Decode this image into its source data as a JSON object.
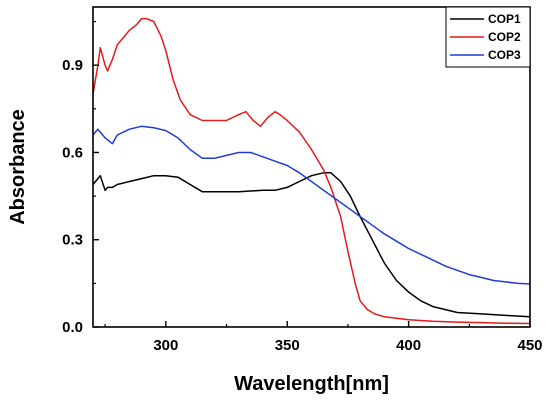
{
  "chart_data": {
    "type": "line",
    "title": "",
    "xlabel": "Wavelength[nm]",
    "ylabel": "Absorbance",
    "xlim": [
      270,
      450
    ],
    "ylim": [
      0.0,
      1.1
    ],
    "x_ticks": [
      300,
      350,
      400,
      450
    ],
    "x_tick_labels": [
      "300",
      "350",
      "400",
      "450"
    ],
    "y_ticks": [
      0.0,
      0.3,
      0.6,
      0.9
    ],
    "y_tick_labels": [
      "0.0",
      "0.3",
      "0.6",
      "0.9"
    ],
    "grid": false,
    "legend_position": "top-right",
    "series": [
      {
        "name": "COP1",
        "color": "#000000",
        "x": [
          270,
          272,
          273,
          275,
          276,
          278,
          280,
          285,
          290,
          295,
          300,
          305,
          310,
          315,
          320,
          330,
          340,
          345,
          350,
          355,
          360,
          365,
          368,
          372,
          376,
          380,
          385,
          390,
          395,
          400,
          405,
          410,
          415,
          420,
          430,
          440,
          450
        ],
        "y": [
          0.49,
          0.51,
          0.52,
          0.47,
          0.48,
          0.48,
          0.49,
          0.5,
          0.51,
          0.52,
          0.52,
          0.515,
          0.49,
          0.465,
          0.465,
          0.465,
          0.47,
          0.47,
          0.48,
          0.5,
          0.52,
          0.53,
          0.53,
          0.5,
          0.45,
          0.38,
          0.3,
          0.22,
          0.16,
          0.12,
          0.09,
          0.07,
          0.06,
          0.05,
          0.045,
          0.04,
          0.035
        ]
      },
      {
        "name": "COP2",
        "color": "#e41a1c",
        "x": [
          270,
          271,
          272,
          273,
          274,
          275,
          276,
          277,
          278,
          280,
          283,
          285,
          288,
          290,
          292,
          295,
          298,
          300,
          303,
          306,
          310,
          315,
          320,
          325,
          330,
          333,
          336,
          339,
          342,
          345,
          347,
          350,
          355,
          360,
          365,
          368,
          372,
          375,
          378,
          380,
          383,
          386,
          390,
          395,
          400,
          410,
          420,
          430,
          440,
          450
        ],
        "y": [
          0.8,
          0.85,
          0.9,
          0.96,
          0.93,
          0.9,
          0.88,
          0.9,
          0.92,
          0.97,
          1.0,
          1.02,
          1.04,
          1.06,
          1.06,
          1.05,
          1.0,
          0.95,
          0.85,
          0.78,
          0.73,
          0.71,
          0.71,
          0.71,
          0.73,
          0.74,
          0.71,
          0.69,
          0.72,
          0.74,
          0.73,
          0.71,
          0.67,
          0.61,
          0.54,
          0.48,
          0.38,
          0.26,
          0.15,
          0.09,
          0.06,
          0.045,
          0.035,
          0.03,
          0.025,
          0.02,
          0.017,
          0.015,
          0.013,
          0.012
        ]
      },
      {
        "name": "COP3",
        "color": "#1f3dd6",
        "x": [
          270,
          272,
          273,
          275,
          278,
          280,
          285,
          290,
          295,
          300,
          305,
          310,
          315,
          320,
          325,
          330,
          335,
          340,
          345,
          350,
          355,
          360,
          365,
          370,
          375,
          380,
          385,
          390,
          395,
          400,
          405,
          410,
          415,
          420,
          425,
          430,
          435,
          440,
          445,
          450
        ],
        "y": [
          0.66,
          0.68,
          0.67,
          0.65,
          0.63,
          0.66,
          0.68,
          0.69,
          0.685,
          0.675,
          0.65,
          0.61,
          0.58,
          0.58,
          0.59,
          0.6,
          0.6,
          0.585,
          0.57,
          0.555,
          0.53,
          0.5,
          0.47,
          0.44,
          0.41,
          0.38,
          0.35,
          0.32,
          0.295,
          0.27,
          0.25,
          0.23,
          0.21,
          0.195,
          0.18,
          0.17,
          0.16,
          0.155,
          0.15,
          0.148
        ]
      }
    ]
  }
}
